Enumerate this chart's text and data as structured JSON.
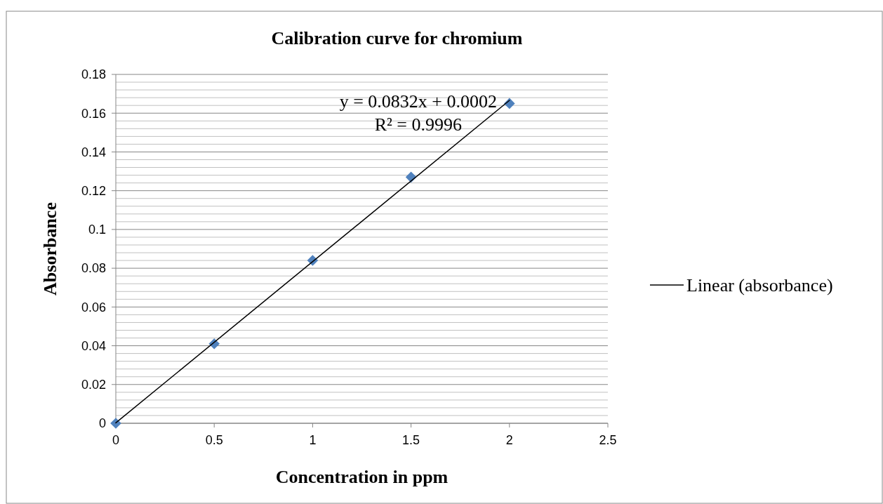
{
  "chart_data": {
    "type": "scatter",
    "title": "Calibration curve for chromium",
    "xlabel": "Concentration in ppm",
    "ylabel": "Absorbance",
    "xlim": [
      0,
      2.5
    ],
    "xticks": [
      0,
      0.5,
      1,
      1.5,
      2,
      2.5
    ],
    "ylim": [
      0,
      0.18
    ],
    "yticks": [
      0,
      0.02,
      0.04,
      0.06,
      0.08,
      0.1,
      0.12,
      0.14,
      0.16,
      0.18
    ],
    "grid": "y",
    "legend": "right",
    "series": [
      {
        "color": "#4f81bd",
        "marker": "diamond",
        "x": [
          0,
          0.5,
          1,
          1.5,
          2
        ],
        "values": [
          0,
          0.041,
          0.084,
          0.127,
          0.165
        ]
      },
      {
        "type": "line",
        "name": "Linear (absorbance)",
        "color": "#000000",
        "marker": "none",
        "x": [
          0,
          2
        ],
        "values": [
          0.0002,
          0.1666
        ]
      }
    ],
    "annotations": [
      "y = 0.0832x + 0.0002",
      "R² = 0.9996"
    ]
  }
}
